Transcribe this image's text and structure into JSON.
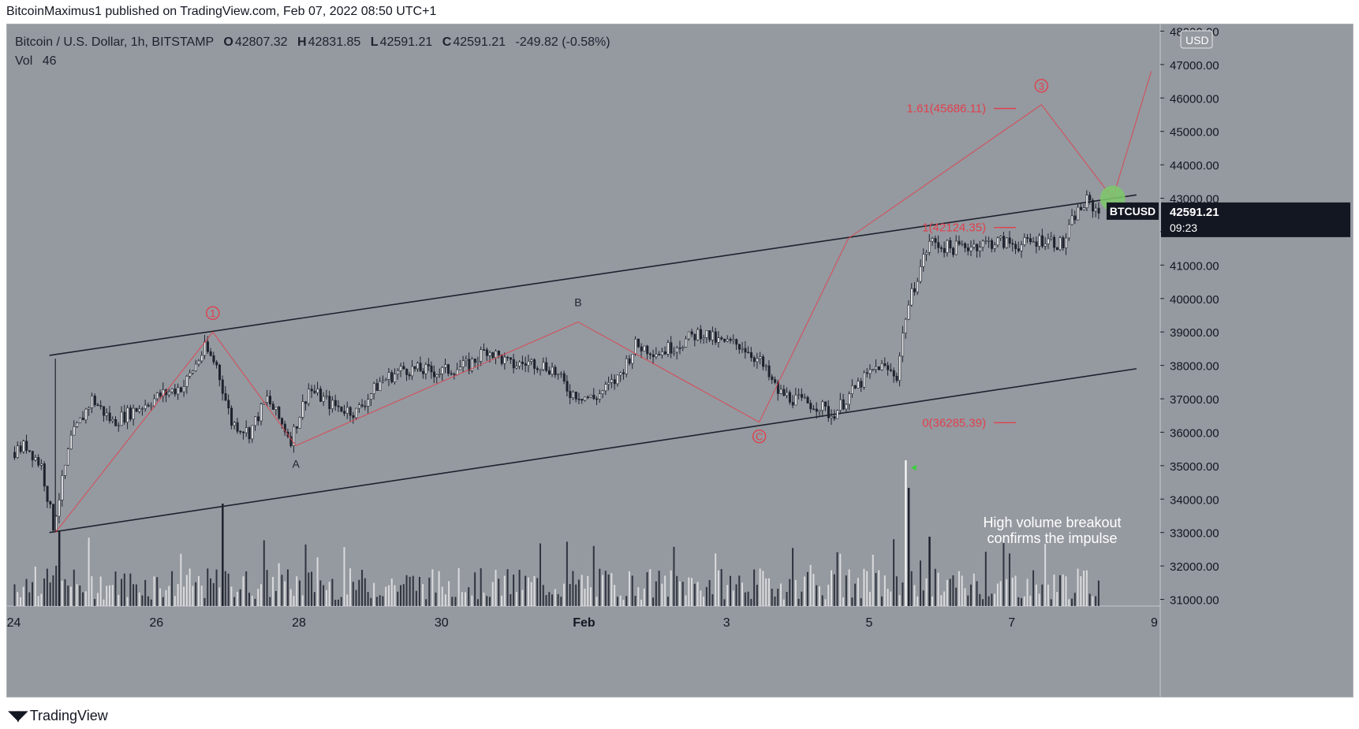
{
  "header": {
    "publisher_line": "BitcoinMaximus1 published on TradingView.com, Feb 07, 2022 08:50 UTC+1"
  },
  "legend": {
    "symbol": "Bitcoin / U.S. Dollar, 1h, BITSTAMP",
    "o_label": "O",
    "o_value": "42807.32",
    "h_label": "H",
    "h_value": "42831.85",
    "l_label": "L",
    "l_value": "42591.21",
    "c_label": "C",
    "c_value": "42591.21",
    "change": "-249.82 (-0.58%)",
    "vol_label": "Vol",
    "vol_value": "46"
  },
  "price_axis": {
    "currency": "USD",
    "ticks": [
      "48000.00",
      "47000.00",
      "46000.00",
      "45000.00",
      "44000.00",
      "43000.00",
      "42000.00",
      "41000.00",
      "40000.00",
      "39000.00",
      "38000.00",
      "37000.00",
      "36000.00",
      "35000.00",
      "34000.00",
      "33000.00",
      "32000.00",
      "31000.00"
    ],
    "tick_values": [
      48000,
      47000,
      46000,
      45000,
      44000,
      43000,
      42000,
      41000,
      40000,
      39000,
      38000,
      37000,
      36000,
      35000,
      34000,
      33000,
      32000,
      31000
    ],
    "last_price": "42591.21",
    "countdown": "09:23",
    "symbol_badge": "BTCUSD"
  },
  "time_axis": {
    "labels": [
      "24",
      "26",
      "28",
      "30",
      "Feb",
      "3",
      "5",
      "7",
      "9"
    ]
  },
  "annotations": {
    "wave_1": "1",
    "wave_3": "3",
    "wave_A": "A",
    "wave_B": "B",
    "wave_C": "C",
    "fib_161": "1.61(45686.11)",
    "fib_1": "1(42124.35)",
    "fib_0": "0(36285.39)",
    "note_line1": "High volume breakout",
    "note_line2": "confirms the impulse"
  },
  "footer": {
    "brand": "TradingView"
  },
  "colors": {
    "background": "#9599a0",
    "candle": "#1e222d",
    "wave_line": "#e0414d",
    "channel": "#1e222d",
    "volume_light": "#e6e6e6",
    "target_circle": "#7ec86a"
  },
  "chart_data": {
    "type": "candlestick",
    "symbol": "BTCUSD",
    "timeframe": "1h",
    "y_range": [
      30800,
      48200
    ],
    "last_price": 42591.21,
    "channel_upper": [
      {
        "x": "2022-01-24 12:00",
        "y": 38300
      },
      {
        "x": "2022-02-08 18:00",
        "y": 43100
      }
    ],
    "channel_lower": [
      {
        "x": "2022-01-24 12:00",
        "y": 33000
      },
      {
        "x": "2022-02-08 18:00",
        "y": 37900
      }
    ],
    "wave_path": [
      {
        "label": "start",
        "x": "2022-01-24 14:00",
        "y": 33000
      },
      {
        "label": "1",
        "x": "2022-01-26 19:00",
        "y": 39000
      },
      {
        "label": "A",
        "x": "2022-01-27 23:00",
        "y": 35600
      },
      {
        "label": "B",
        "x": "2022-01-31 22:00",
        "y": 39300
      },
      {
        "label": "C",
        "x": "2022-02-03 11:00",
        "y": 36300
      },
      {
        "label": "",
        "x": "2022-02-04 17:00",
        "y": 41800
      },
      {
        "label": "3",
        "x": "2022-02-07 10:00",
        "y": 45800
      },
      {
        "label": "",
        "x": "2022-02-08 10:00",
        "y": 43000
      },
      {
        "label": "",
        "x": "2022-02-08 23:00",
        "y": 46800
      }
    ],
    "fib_levels": [
      {
        "ratio": "1.61",
        "value": 45686.11
      },
      {
        "ratio": "1",
        "value": 42124.35
      },
      {
        "ratio": "0",
        "value": 36285.39
      }
    ],
    "price_path": [
      {
        "x": "2022-01-24 00:00",
        "y": 35400
      },
      {
        "x": "2022-01-24 05:00",
        "y": 35600
      },
      {
        "x": "2022-01-24 10:00",
        "y": 35000
      },
      {
        "x": "2022-01-24 14:00",
        "y": 33200
      },
      {
        "x": "2022-01-24 20:00",
        "y": 35800
      },
      {
        "x": "2022-01-25 03:00",
        "y": 37000
      },
      {
        "x": "2022-01-25 10:00",
        "y": 36300
      },
      {
        "x": "2022-01-25 18:00",
        "y": 36700
      },
      {
        "x": "2022-01-26 02:00",
        "y": 37100
      },
      {
        "x": "2022-01-26 10:00",
        "y": 37400
      },
      {
        "x": "2022-01-26 17:00",
        "y": 38500
      },
      {
        "x": "2022-01-26 21:00",
        "y": 38000
      },
      {
        "x": "2022-01-27 02:00",
        "y": 36300
      },
      {
        "x": "2022-01-27 08:00",
        "y": 36000
      },
      {
        "x": "2022-01-27 14:00",
        "y": 37000
      },
      {
        "x": "2022-01-27 22:00",
        "y": 35800
      },
      {
        "x": "2022-01-28 04:00",
        "y": 37300
      },
      {
        "x": "2022-01-28 12:00",
        "y": 36800
      },
      {
        "x": "2022-01-28 20:00",
        "y": 36600
      },
      {
        "x": "2022-01-29 04:00",
        "y": 37500
      },
      {
        "x": "2022-01-29 12:00",
        "y": 37900
      },
      {
        "x": "2022-01-30 00:00",
        "y": 37800
      },
      {
        "x": "2022-01-30 10:00",
        "y": 38000
      },
      {
        "x": "2022-01-30 16:00",
        "y": 38500
      },
      {
        "x": "2022-01-31 00:00",
        "y": 38000
      },
      {
        "x": "2022-01-31 08:00",
        "y": 38100
      },
      {
        "x": "2022-01-31 14:00",
        "y": 37900
      },
      {
        "x": "2022-01-31 20:00",
        "y": 37200
      },
      {
        "x": "2022-02-01 04:00",
        "y": 37000
      },
      {
        "x": "2022-02-01 12:00",
        "y": 37600
      },
      {
        "x": "2022-02-01 18:00",
        "y": 38600
      },
      {
        "x": "2022-02-02 02:00",
        "y": 38400
      },
      {
        "x": "2022-02-02 10:00",
        "y": 38700
      },
      {
        "x": "2022-02-02 16:00",
        "y": 39000
      },
      {
        "x": "2022-02-02 22:00",
        "y": 38700
      },
      {
        "x": "2022-02-03 06:00",
        "y": 38600
      },
      {
        "x": "2022-02-03 12:00",
        "y": 38100
      },
      {
        "x": "2022-02-03 18:00",
        "y": 37200
      },
      {
        "x": "2022-02-04 02:00",
        "y": 36900
      },
      {
        "x": "2022-02-04 08:00",
        "y": 36800
      },
      {
        "x": "2022-02-04 12:00",
        "y": 36500
      },
      {
        "x": "2022-02-04 16:00",
        "y": 36900
      },
      {
        "x": "2022-02-04 22:00",
        "y": 37500
      },
      {
        "x": "2022-02-05 04:00",
        "y": 38000
      },
      {
        "x": "2022-02-05 10:00",
        "y": 37700
      },
      {
        "x": "2022-02-05 13:00",
        "y": 39500
      },
      {
        "x": "2022-02-05 17:00",
        "y": 40700
      },
      {
        "x": "2022-02-05 21:00",
        "y": 41700
      },
      {
        "x": "2022-02-06 04:00",
        "y": 41500
      },
      {
        "x": "2022-02-06 12:00",
        "y": 41600
      },
      {
        "x": "2022-02-06 20:00",
        "y": 41700
      },
      {
        "x": "2022-02-07 04:00",
        "y": 41600
      },
      {
        "x": "2022-02-07 12:00",
        "y": 41800
      },
      {
        "x": "2022-02-07 18:00",
        "y": 41600
      },
      {
        "x": "2022-02-07 22:00",
        "y": 42500
      },
      {
        "x": "2022-02-08 02:00",
        "y": 42900
      },
      {
        "x": "2022-02-08 06:00",
        "y": 42591
      }
    ]
  }
}
